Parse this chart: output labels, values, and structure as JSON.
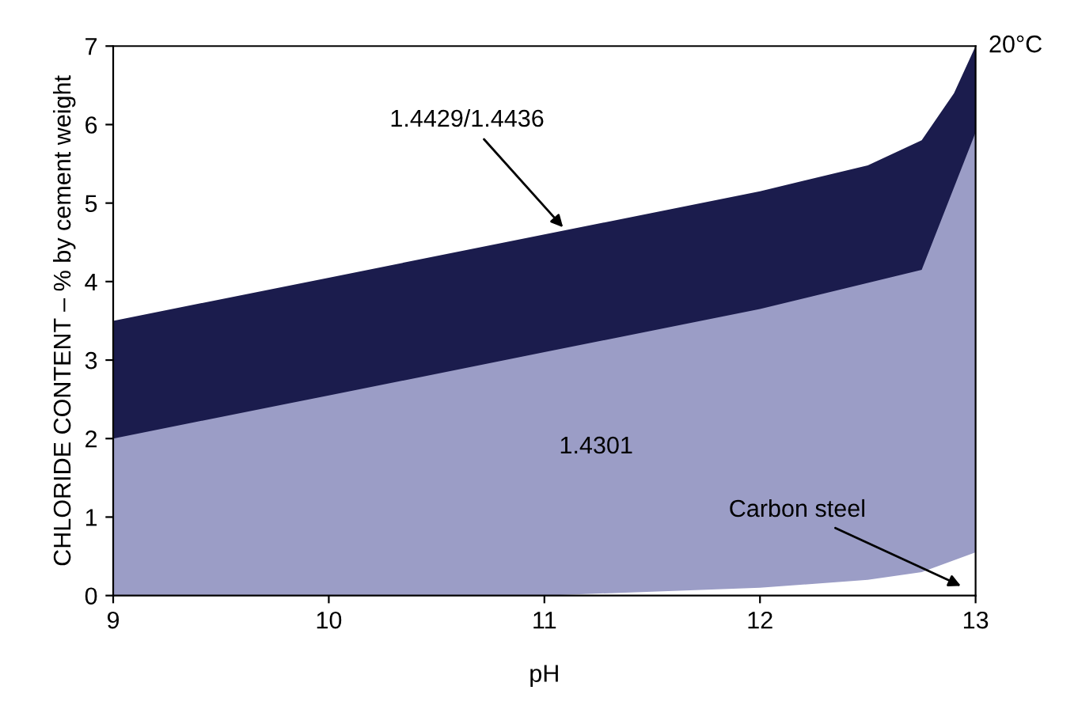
{
  "chart_data": {
    "type": "area",
    "xlabel": "pH",
    "ylabel": "CHLORIDE CONTENT – % by cement weight",
    "series": [
      {
        "color": "#1b1c4d",
        "x": [
          9,
          10,
          11,
          12,
          12.5,
          12.75,
          12.9,
          13
        ],
        "values": [
          3.5,
          4.05,
          4.6,
          5.15,
          5.48,
          5.8,
          6.4,
          7
        ]
      },
      {
        "color": "#9b9dc6",
        "x": [
          9,
          10,
          11,
          12,
          12.75,
          13
        ],
        "values": [
          2.0,
          2.55,
          3.1,
          3.65,
          4.15,
          5.9
        ]
      },
      {
        "color": "#ffffff",
        "x": [
          9,
          11,
          11.5,
          12,
          12.5,
          12.75,
          13
        ],
        "values": [
          0,
          0,
          0.05,
          0.1,
          0.2,
          0.3,
          0.55
        ]
      }
    ],
    "annotations": [
      {
        "text": "1.4429/1.4436",
        "x": 11.1,
        "y": 4.65
      },
      "1.4301",
      {
        "text": "Carbon steel",
        "x": 12.95,
        "y": 0.1
      },
      "20°C"
    ],
    "xlim": [
      9,
      13
    ],
    "ylim": [
      0,
      7
    ],
    "xticks": [
      9,
      10,
      11,
      12,
      13
    ],
    "yticks": [
      0,
      1,
      2,
      3,
      4,
      5,
      6,
      7
    ],
    "grid": false,
    "legend": false
  }
}
